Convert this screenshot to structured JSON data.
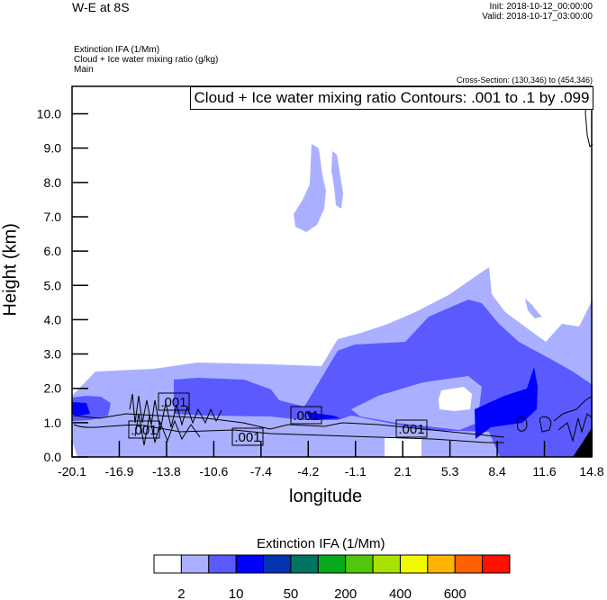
{
  "header": {
    "title": "W-E at 8S",
    "init": "Init: 2018-10-12_00:00:00",
    "valid": "Valid: 2018-10-17_03:00:00",
    "fields": [
      "Extinction IFA   (1/Mm)",
      "Cloud + Ice water mixing ratio   (g/kg)",
      "Main"
    ],
    "cross_section": "Cross-Section: (130,346) to (454,346)"
  },
  "chart_data": {
    "type": "heatmap",
    "subtype": "filled contour with line contours",
    "contour_label": "Cloud + Ice water mixing ratio Contours: .001 to .1 by .099",
    "line_contour_labels": [
      ".001",
      ".001",
      ".001",
      ".001",
      ".001"
    ],
    "xlabel": "longitude",
    "ylabel": "Height (km)",
    "xlim": [
      -20.1,
      14.8
    ],
    "ylim": [
      0,
      10.8
    ],
    "xticks": [
      "-20.1",
      "-16.9",
      "-13.8",
      "-10.6",
      "-7.4",
      "-4.2",
      "-1.1",
      "2.1",
      "5.3",
      "8.4",
      "11.6",
      "14.8"
    ],
    "yticks": [
      "0.0",
      "1.0",
      "2.0",
      "3.0",
      "4.0",
      "5.0",
      "6.0",
      "7.0",
      "8.0",
      "9.0",
      "10.0"
    ],
    "colorbar": {
      "title": "Extinction IFA  (1/Mm)",
      "labels": [
        "2",
        "10",
        "50",
        "200",
        "400",
        "600"
      ],
      "colors": [
        "#ffffff",
        "#aab0ff",
        "#5a5aff",
        "#0000ff",
        "#0333b0",
        "#027462",
        "#06aa1a",
        "#52c60c",
        "#a8e200",
        "#f2fa00",
        "#ffb400",
        "#ff6000",
        "#ff1000"
      ]
    }
  }
}
